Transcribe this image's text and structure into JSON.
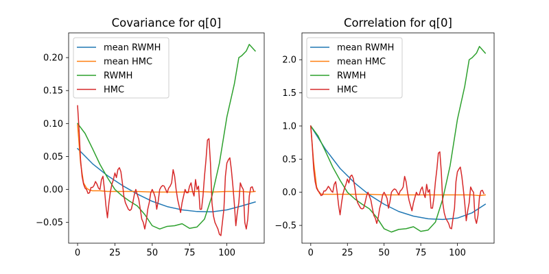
{
  "colors": {
    "mean_rwmh": "#1f77b4",
    "mean_hmc": "#ff7f0e",
    "rwmh": "#2ca02c",
    "hmc": "#d62728"
  },
  "chart_data": [
    {
      "type": "line",
      "title": "Covariance for q[0]",
      "xlabel": "",
      "ylabel": "",
      "xlim": [
        -6,
        125
      ],
      "ylim": [
        -0.0815,
        0.2375
      ],
      "xticks": [
        0,
        25,
        50,
        75,
        100
      ],
      "xtick_labels": [
        "0",
        "25",
        "50",
        "75",
        "100"
      ],
      "yticks": [
        -0.05,
        0.0,
        0.05,
        0.1,
        0.15,
        0.2
      ],
      "ytick_labels": [
        "−0.05",
        "0.00",
        "0.05",
        "0.10",
        "0.15",
        "0.20"
      ],
      "grid": false,
      "legend_position": "top-left",
      "series": [
        {
          "name": "mean RWMH",
          "x": [
            0,
            10,
            20,
            30,
            40,
            50,
            60,
            70,
            80,
            90,
            100,
            110,
            119
          ],
          "y": [
            0.062,
            0.039,
            0.021,
            0.006,
            -0.007,
            -0.018,
            -0.026,
            -0.031,
            -0.0335,
            -0.034,
            -0.031,
            -0.025,
            -0.019
          ]
        },
        {
          "name": "mean HMC",
          "x": [
            0,
            2,
            4,
            6,
            8,
            10,
            15,
            20,
            30,
            40,
            50,
            60,
            70,
            80,
            90,
            100,
            110,
            115,
            119
          ],
          "y": [
            0.098,
            0.04,
            0.01,
            0.002,
            -0.001,
            -0.002,
            -0.002,
            -0.003,
            -0.003,
            -0.003,
            -0.004,
            -0.004,
            -0.004,
            -0.003,
            -0.004,
            -0.003,
            -0.003,
            -0.004,
            -0.003
          ]
        },
        {
          "name": "RWMH",
          "x": [
            0,
            5,
            10,
            15,
            20,
            25,
            30,
            35,
            40,
            45,
            50,
            55,
            60,
            65,
            70,
            75,
            80,
            85,
            90,
            95,
            100,
            105,
            108,
            110,
            113,
            115,
            119
          ],
          "y": [
            0.1,
            0.085,
            0.062,
            0.038,
            0.018,
            0.0,
            -0.01,
            -0.018,
            -0.025,
            -0.038,
            -0.055,
            -0.06,
            -0.056,
            -0.055,
            -0.052,
            -0.059,
            -0.057,
            -0.045,
            -0.01,
            0.04,
            0.11,
            0.16,
            0.2,
            0.203,
            0.21,
            0.22,
            0.21
          ]
        },
        {
          "name": "HMC",
          "x": [
            0,
            1,
            2,
            3,
            4,
            5,
            6,
            7,
            8,
            9,
            10,
            11,
            12,
            13,
            14,
            15,
            16,
            17,
            18,
            19,
            20,
            21,
            22,
            23,
            24,
            25,
            26,
            27,
            28,
            29,
            30,
            31,
            32,
            33,
            34,
            35,
            36,
            37,
            38,
            39,
            40,
            41,
            42,
            43,
            44,
            45,
            46,
            47,
            48,
            49,
            50,
            51,
            52,
            53,
            54,
            55,
            56,
            57,
            58,
            59,
            60,
            61,
            62,
            63,
            64,
            65,
            66,
            67,
            68,
            69,
            70,
            71,
            72,
            73,
            74,
            75,
            76,
            77,
            78,
            79,
            80,
            81,
            82,
            83,
            84,
            85,
            86,
            87,
            88,
            89,
            90,
            91,
            92,
            93,
            94,
            95,
            96,
            97,
            98,
            99,
            100,
            101,
            102,
            103,
            104,
            105,
            106,
            107,
            108,
            109,
            110,
            111,
            112,
            113,
            114,
            115,
            116,
            117,
            118
          ],
          "y": [
            0.127,
            0.09,
            0.045,
            0.02,
            0.008,
            0.002,
            0.0,
            -0.006,
            -0.005,
            0.003,
            0.003,
            0.006,
            0.012,
            0.008,
            0.002,
            0.0,
            0.015,
            0.02,
            0.0,
            -0.025,
            -0.043,
            -0.02,
            -0.003,
            0.008,
            0.015,
            0.025,
            0.018,
            0.03,
            0.033,
            0.027,
            0.01,
            -0.01,
            -0.02,
            -0.025,
            -0.03,
            -0.032,
            -0.03,
            -0.02,
            -0.008,
            0.0,
            -0.008,
            -0.015,
            -0.03,
            -0.045,
            -0.05,
            -0.06,
            -0.048,
            -0.03,
            -0.02,
            -0.005,
            0.0,
            -0.005,
            -0.012,
            -0.03,
            -0.018,
            0.0,
            0.004,
            0.006,
            0.005,
            0.0,
            -0.005,
            0.002,
            0.005,
            0.01,
            0.03,
            0.02,
            0.0,
            -0.015,
            -0.025,
            -0.035,
            -0.02,
            -0.01,
            0.0,
            -0.005,
            -0.005,
            0.005,
            0.01,
            -0.003,
            -0.01,
            0.015,
            0.0,
            0.005,
            -0.03,
            -0.03,
            -0.01,
            0.02,
            0.045,
            0.075,
            0.077,
            0.04,
            -0.02,
            -0.04,
            -0.05,
            -0.055,
            -0.06,
            -0.068,
            -0.07,
            -0.05,
            -0.03,
            0.02,
            0.04,
            0.045,
            0.048,
            0.03,
            0.006,
            -0.022,
            -0.055,
            -0.035,
            -0.02,
            0.01,
            0.004,
            0.0,
            -0.05,
            -0.06,
            -0.045,
            -0.01,
            0.003,
            0.004,
            -0.003
          ]
        }
      ]
    },
    {
      "type": "line",
      "title": "Correlation for q[0]",
      "xlabel": "",
      "ylabel": "",
      "xlim": [
        -6,
        125
      ],
      "ylim": [
        -0.768,
        2.405
      ],
      "xticks": [
        0,
        25,
        50,
        75,
        100
      ],
      "xtick_labels": [
        "0",
        "25",
        "50",
        "75",
        "100"
      ],
      "yticks": [
        -0.5,
        0.0,
        0.5,
        1.0,
        1.5,
        2.0
      ],
      "ytick_labels": [
        "−0.5",
        "0.0",
        "0.5",
        "1.0",
        "1.5",
        "2.0"
      ],
      "grid": false,
      "legend_position": "top-left",
      "series": [
        {
          "name": "mean RWMH",
          "x": [
            0,
            10,
            20,
            30,
            40,
            50,
            60,
            70,
            80,
            90,
            100,
            110,
            119
          ],
          "y": [
            1.0,
            0.65,
            0.36,
            0.14,
            -0.04,
            -0.18,
            -0.29,
            -0.36,
            -0.4,
            -0.41,
            -0.39,
            -0.31,
            -0.18
          ]
        },
        {
          "name": "mean HMC",
          "x": [
            0,
            2,
            4,
            6,
            8,
            10,
            15,
            20,
            30,
            40,
            50,
            60,
            70,
            80,
            90,
            100,
            110,
            115,
            119
          ],
          "y": [
            1.0,
            0.45,
            0.08,
            -0.02,
            -0.03,
            -0.03,
            -0.03,
            -0.03,
            -0.03,
            -0.03,
            -0.04,
            -0.04,
            -0.04,
            -0.04,
            -0.04,
            -0.04,
            -0.04,
            -0.05,
            -0.04
          ]
        },
        {
          "name": "RWMH",
          "x": [
            0,
            5,
            10,
            15,
            20,
            25,
            30,
            35,
            40,
            45,
            50,
            55,
            60,
            65,
            70,
            75,
            80,
            85,
            90,
            95,
            100,
            105,
            108,
            110,
            113,
            115,
            119
          ],
          "y": [
            1.0,
            0.85,
            0.62,
            0.38,
            0.18,
            0.0,
            -0.1,
            -0.18,
            -0.25,
            -0.38,
            -0.55,
            -0.6,
            -0.56,
            -0.55,
            -0.52,
            -0.59,
            -0.57,
            -0.45,
            -0.1,
            0.4,
            1.1,
            1.6,
            2.0,
            2.03,
            2.1,
            2.2,
            2.1
          ]
        },
        {
          "name": "HMC",
          "x": [
            0,
            1,
            2,
            3,
            4,
            5,
            6,
            7,
            8,
            9,
            10,
            11,
            12,
            13,
            14,
            15,
            16,
            17,
            18,
            19,
            20,
            21,
            22,
            23,
            24,
            25,
            26,
            27,
            28,
            29,
            30,
            31,
            32,
            33,
            34,
            35,
            36,
            37,
            38,
            39,
            40,
            41,
            42,
            43,
            44,
            45,
            46,
            47,
            48,
            49,
            50,
            51,
            52,
            53,
            54,
            55,
            56,
            57,
            58,
            59,
            60,
            61,
            62,
            63,
            64,
            65,
            66,
            67,
            68,
            69,
            70,
            71,
            72,
            73,
            74,
            75,
            76,
            77,
            78,
            79,
            80,
            81,
            82,
            83,
            84,
            85,
            86,
            87,
            88,
            89,
            90,
            91,
            92,
            93,
            94,
            95,
            96,
            97,
            98,
            99,
            100,
            101,
            102,
            103,
            104,
            105,
            106,
            107,
            108,
            109,
            110,
            111,
            112,
            113,
            114,
            115,
            116,
            117,
            118
          ],
          "y": [
            1.0,
            0.71,
            0.35,
            0.16,
            0.06,
            0.02,
            0.0,
            -0.05,
            -0.04,
            0.02,
            0.02,
            0.05,
            0.09,
            0.06,
            0.02,
            0.0,
            0.12,
            0.16,
            0.0,
            -0.2,
            -0.34,
            -0.16,
            -0.02,
            0.06,
            0.12,
            0.2,
            0.14,
            0.24,
            0.26,
            0.21,
            0.08,
            -0.08,
            -0.16,
            -0.2,
            -0.24,
            -0.25,
            -0.24,
            -0.16,
            -0.06,
            0.0,
            -0.06,
            -0.12,
            -0.24,
            -0.35,
            -0.39,
            -0.47,
            -0.38,
            -0.24,
            -0.16,
            -0.04,
            0.0,
            -0.04,
            -0.09,
            -0.24,
            -0.14,
            0.0,
            0.03,
            0.05,
            0.04,
            0.0,
            -0.04,
            0.02,
            0.04,
            0.08,
            0.24,
            0.16,
            0.0,
            -0.12,
            -0.2,
            -0.28,
            -0.16,
            -0.08,
            0.0,
            -0.04,
            -0.04,
            0.04,
            0.08,
            -0.02,
            -0.08,
            0.12,
            0.0,
            0.04,
            -0.24,
            -0.24,
            -0.08,
            0.16,
            0.35,
            0.59,
            0.61,
            0.31,
            -0.16,
            -0.31,
            -0.39,
            -0.43,
            -0.47,
            -0.54,
            -0.55,
            -0.39,
            -0.24,
            0.16,
            0.31,
            0.35,
            0.38,
            0.24,
            0.05,
            -0.17,
            -0.43,
            -0.28,
            -0.16,
            0.08,
            0.03,
            0.0,
            -0.39,
            -0.47,
            -0.35,
            -0.08,
            0.02,
            0.03,
            -0.02
          ]
        }
      ]
    }
  ]
}
